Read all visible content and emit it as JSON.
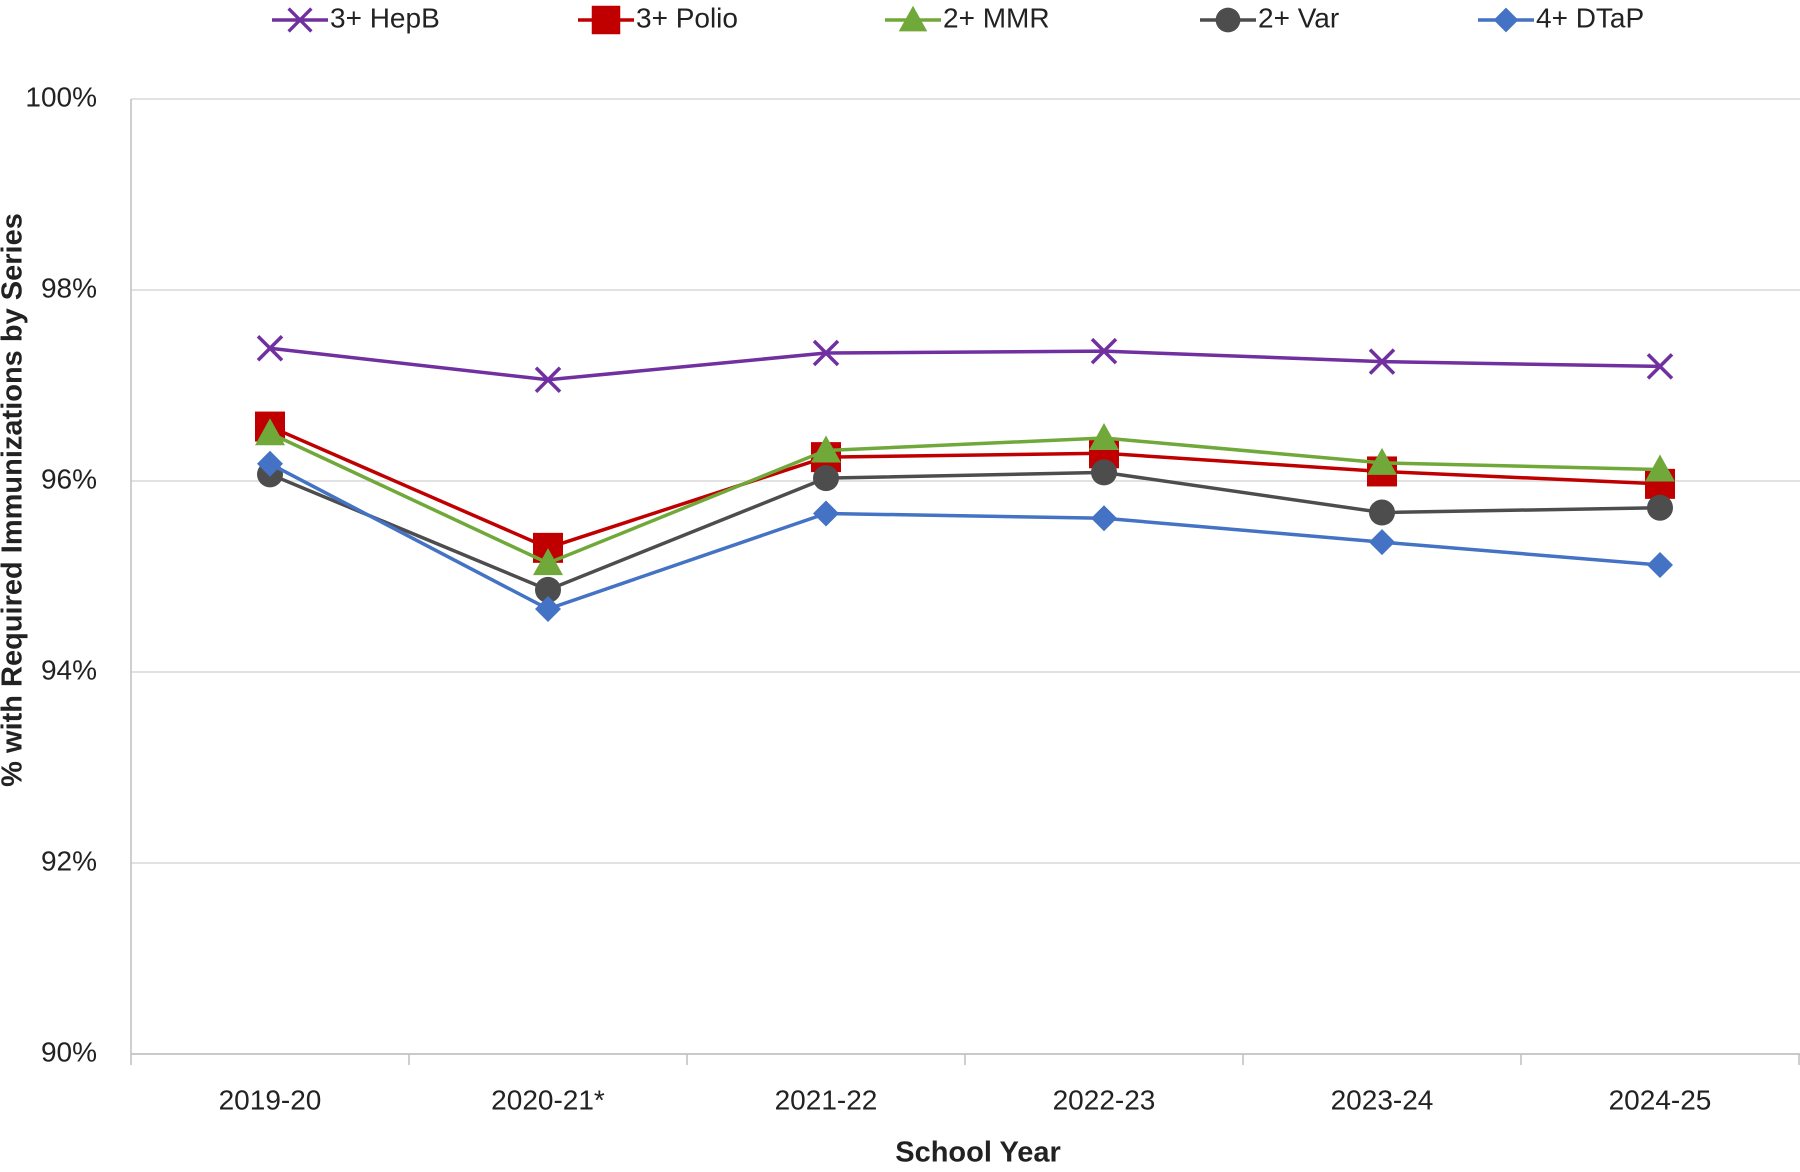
{
  "chart_data": {
    "type": "line",
    "x_label": "School Year",
    "y_label": "% with Required Immunizations by Series",
    "categories": [
      "2019-20",
      "2020-21*",
      "2021-22",
      "2022-23",
      "2023-24",
      "2024-25"
    ],
    "series": [
      {
        "name": "3+ HepB",
        "color": "#7030a0",
        "marker": "x",
        "values": [
          97.39,
          97.06,
          97.34,
          97.36,
          97.25,
          97.2
        ]
      },
      {
        "name": "3+ Polio",
        "color": "#c00000",
        "marker": "square",
        "values": [
          96.57,
          95.3,
          96.25,
          96.29,
          96.1,
          95.97
        ]
      },
      {
        "name": "2+ MMR",
        "color": "#70a83a",
        "marker": "triangle",
        "values": [
          96.5,
          95.14,
          96.32,
          96.45,
          96.19,
          96.12
        ]
      },
      {
        "name": "2+ Var",
        "color": "#4d4d4d",
        "marker": "circle",
        "values": [
          96.07,
          94.86,
          96.03,
          96.09,
          95.67,
          95.72
        ]
      },
      {
        "name": "4+ DTaP",
        "color": "#4472c4",
        "marker": "diamond",
        "values": [
          96.18,
          94.66,
          95.66,
          95.61,
          95.36,
          95.12
        ]
      }
    ],
    "ylim": [
      90,
      100
    ],
    "yticks": [
      {
        "value": 90,
        "label": "90%"
      },
      {
        "value": 92,
        "label": "92%"
      },
      {
        "value": 94,
        "label": "94%"
      },
      {
        "value": 96,
        "label": "96%"
      },
      {
        "value": 98,
        "label": "98%"
      },
      {
        "value": 100,
        "label": "100%"
      }
    ],
    "grid": true,
    "legend": "top"
  }
}
